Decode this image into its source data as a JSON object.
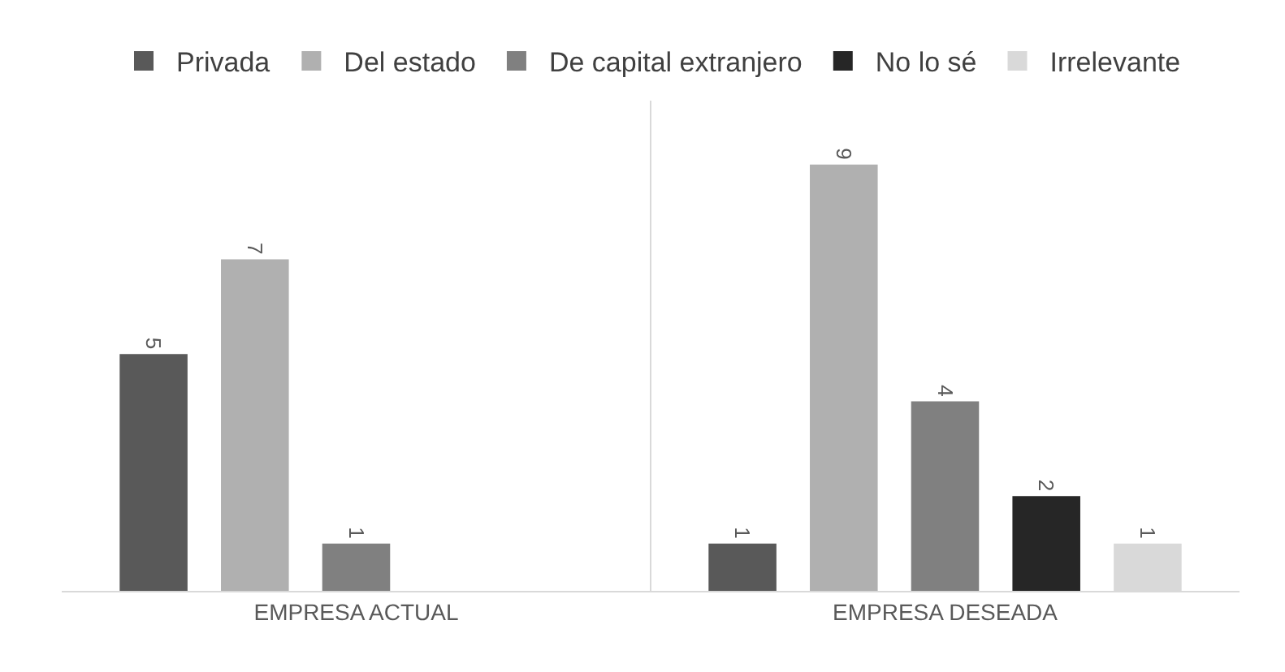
{
  "chart_data": {
    "type": "bar",
    "categories": [
      "EMPRESA ACTUAL",
      "EMPRESA DESEADA"
    ],
    "series": [
      {
        "name": "Privada",
        "color": "#595959",
        "values": [
          5,
          1
        ]
      },
      {
        "name": "Del estado",
        "color": "#b0b0b0",
        "values": [
          7,
          9
        ]
      },
      {
        "name": "De capital extranjero",
        "color": "#808080",
        "values": [
          1,
          4
        ]
      },
      {
        "name": "No lo sé",
        "color": "#262626",
        "values": [
          null,
          2
        ]
      },
      {
        "name": "Irrelevante",
        "color": "#d9d9d9",
        "values": [
          null,
          1
        ]
      }
    ],
    "data_labels": true,
    "legend": "top",
    "grid": "x"
  }
}
